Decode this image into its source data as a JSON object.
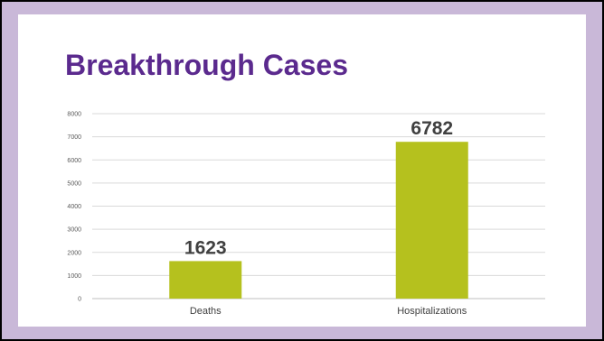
{
  "slide": {
    "title": "Breakthrough Cases"
  },
  "colors": {
    "bar": "#b5c11e",
    "title": "#5b2a8e",
    "grid": "#d9d9d9",
    "frame": "#c9b8d8"
  },
  "chart_data": {
    "type": "bar",
    "title": "Breakthrough Cases",
    "categories": [
      "Deaths",
      "Hospitalizations"
    ],
    "values": [
      1623,
      6782
    ],
    "data_labels": [
      "1623",
      "6782"
    ],
    "xlabel": "",
    "ylabel": "",
    "ylim": [
      0,
      8000
    ],
    "yticks": [
      0,
      1000,
      2000,
      3000,
      4000,
      5000,
      6000,
      7000,
      8000
    ],
    "grid": true,
    "legend": "none"
  }
}
